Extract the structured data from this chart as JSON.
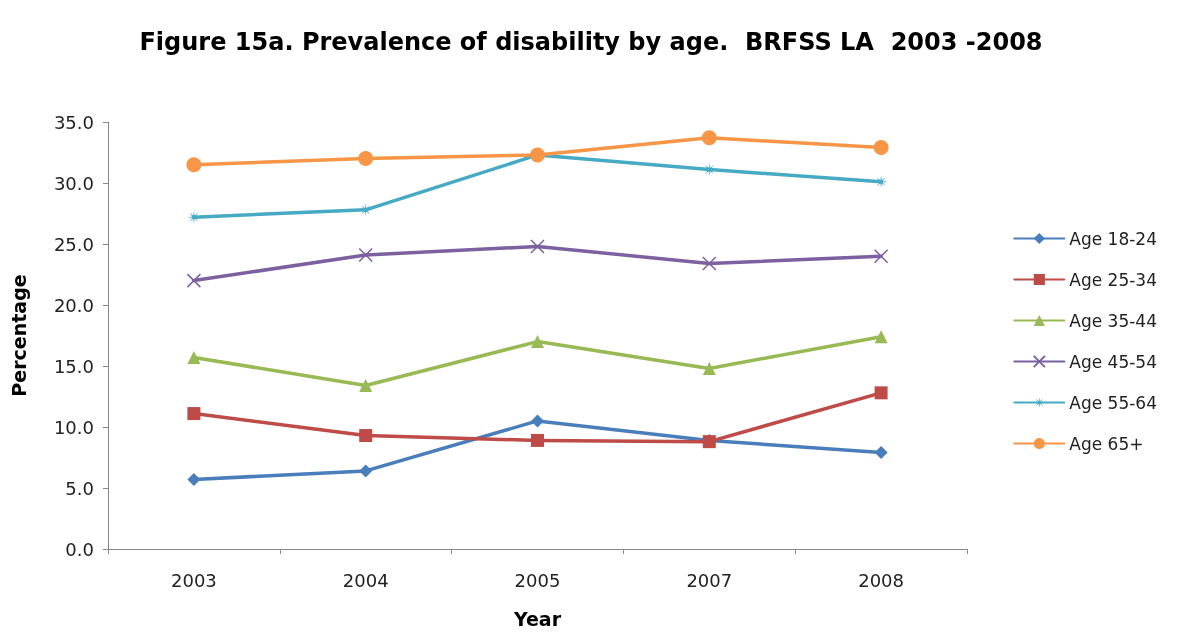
{
  "chart_data": {
    "type": "line",
    "title": "Figure 15a. Prevalence of disability by age.  BRFSS LA  2003 -2008",
    "xlabel": "Year",
    "ylabel": "Percentage",
    "categories": [
      "2003",
      "2004",
      "2005",
      "2007",
      "2008"
    ],
    "series": [
      {
        "name": "Age 18-24",
        "color": "#4a7ebb",
        "marker": "diamond",
        "values": [
          5.7,
          6.4,
          10.5,
          8.9,
          7.9
        ]
      },
      {
        "name": "Age 25-34",
        "color": "#be4b48",
        "marker": "square",
        "values": [
          11.1,
          9.3,
          8.9,
          8.8,
          12.8
        ]
      },
      {
        "name": "Age 35-44",
        "color": "#98b954",
        "marker": "triangle",
        "values": [
          15.7,
          13.4,
          17.0,
          14.8,
          17.4
        ]
      },
      {
        "name": "Age 45-54",
        "color": "#7d60a0",
        "marker": "cross",
        "values": [
          22.0,
          24.1,
          24.8,
          23.4,
          24.0
        ]
      },
      {
        "name": "Age 55-64",
        "color": "#46aac5",
        "marker": "star",
        "values": [
          27.2,
          27.8,
          32.3,
          31.1,
          30.1
        ]
      },
      {
        "name": "Age 65+",
        "color": "#f79646",
        "marker": "circle",
        "values": [
          31.5,
          32.0,
          32.3,
          33.7,
          32.9
        ]
      }
    ],
    "ylim": [
      0,
      35
    ],
    "yticks": [
      {
        "value": 0,
        "label": "0.0"
      },
      {
        "value": 5,
        "label": "5.0"
      },
      {
        "value": 10,
        "label": "10.0"
      },
      {
        "value": 15,
        "label": "15.0"
      },
      {
        "value": 20,
        "label": "20.0"
      },
      {
        "value": 25,
        "label": "25.0"
      },
      {
        "value": 30,
        "label": "30.0"
      },
      {
        "value": 35,
        "label": "35.0"
      }
    ],
    "grid": false,
    "legend": "right",
    "line_style": "solid"
  }
}
